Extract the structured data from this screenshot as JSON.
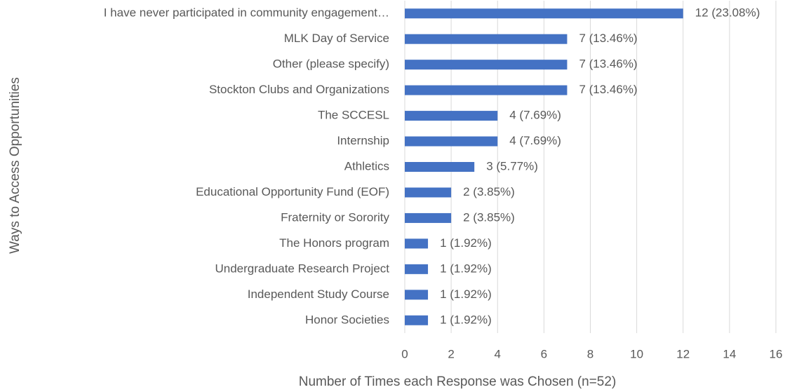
{
  "chart_data": {
    "type": "bar",
    "orientation": "horizontal",
    "x_label": "Number of Times each Response was Chosen (n=52)",
    "y_label": "Ways to Access Opportunities",
    "categories": [
      "I have never participated in community engagement…",
      "MLK Day of Service",
      "Other (please specify)",
      "Stockton Clubs and Organizations",
      "The SCCESL",
      "Internship",
      "Athletics",
      "Educational Opportunity Fund (EOF)",
      "Fraternity or Sorority",
      "The Honors program",
      "Undergraduate Research Project",
      "Independent Study Course",
      "Honor Societies"
    ],
    "values": [
      12,
      7,
      7,
      7,
      4,
      4,
      3,
      2,
      2,
      1,
      1,
      1,
      1
    ],
    "value_labels": [
      "12 (23.08%)",
      "7 (13.46%)",
      "7 (13.46%)",
      "7 (13.46%)",
      "4 (7.69%)",
      "4 (7.69%)",
      "3 (5.77%)",
      "2 (3.85%)",
      "2 (3.85%)",
      "1 (1.92%)",
      "1 (1.92%)",
      "1 (1.92%)",
      "1 (1.92%)"
    ],
    "color": "#4472c4",
    "xlim": [
      0,
      16
    ],
    "xticks": [
      0,
      2,
      4,
      6,
      8,
      10,
      12,
      14,
      16
    ],
    "grid": true
  }
}
